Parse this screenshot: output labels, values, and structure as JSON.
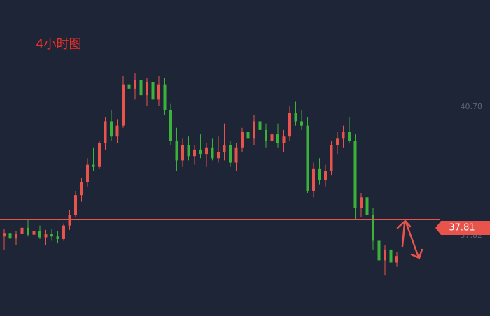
{
  "chart_data": {
    "type": "candlestick",
    "title": "4小时图",
    "price_tag": "37.81",
    "up_color": "#e8534b",
    "down_color": "#3bb33b",
    "ylim": [
      35.97,
      43.24
    ],
    "yticks": [
      37.82,
      40.78
    ],
    "ohlc": [
      [
        37.8,
        37.98,
        37.5,
        37.88
      ],
      [
        37.88,
        38.02,
        37.7,
        37.75
      ],
      [
        37.75,
        37.92,
        37.6,
        37.86
      ],
      [
        37.86,
        38.1,
        37.72,
        38.0
      ],
      [
        38.0,
        38.18,
        37.8,
        37.84
      ],
      [
        37.84,
        38.0,
        37.66,
        37.92
      ],
      [
        37.92,
        38.05,
        37.74,
        37.78
      ],
      [
        37.78,
        37.95,
        37.6,
        37.85
      ],
      [
        37.85,
        37.98,
        37.7,
        37.8
      ],
      [
        37.8,
        37.92,
        37.64,
        37.74
      ],
      [
        37.74,
        38.1,
        37.7,
        38.05
      ],
      [
        38.05,
        38.4,
        37.95,
        38.3
      ],
      [
        38.3,
        38.85,
        38.25,
        38.75
      ],
      [
        38.75,
        39.15,
        38.6,
        39.05
      ],
      [
        39.05,
        39.6,
        38.95,
        39.45
      ],
      [
        39.45,
        39.85,
        39.3,
        39.4
      ],
      [
        39.4,
        40.0,
        39.35,
        39.95
      ],
      [
        39.95,
        40.55,
        39.8,
        40.45
      ],
      [
        40.45,
        40.7,
        40.0,
        40.1
      ],
      [
        40.1,
        40.5,
        39.95,
        40.35
      ],
      [
        40.35,
        41.5,
        40.3,
        41.3
      ],
      [
        41.3,
        41.65,
        41.1,
        41.2
      ],
      [
        41.2,
        41.55,
        40.95,
        41.4
      ],
      [
        41.4,
        41.8,
        41.0,
        41.05
      ],
      [
        41.05,
        41.45,
        40.8,
        41.35
      ],
      [
        41.35,
        41.6,
        40.9,
        40.95
      ],
      [
        40.95,
        41.5,
        40.8,
        41.3
      ],
      [
        41.3,
        41.45,
        40.6,
        40.7
      ],
      [
        40.7,
        40.85,
        39.9,
        40.0
      ],
      [
        40.0,
        40.3,
        39.3,
        39.55
      ],
      [
        39.55,
        40.05,
        39.4,
        39.9
      ],
      [
        39.9,
        40.1,
        39.55,
        39.65
      ],
      [
        39.65,
        39.9,
        39.45,
        39.8
      ],
      [
        39.8,
        40.15,
        39.6,
        39.7
      ],
      [
        39.7,
        39.95,
        39.4,
        39.85
      ],
      [
        39.85,
        40.05,
        39.55,
        39.6
      ],
      [
        39.6,
        40.1,
        39.5,
        39.75
      ],
      [
        39.75,
        40.4,
        39.55,
        39.9
      ],
      [
        39.9,
        40.0,
        39.4,
        39.5
      ],
      [
        39.5,
        39.95,
        39.3,
        39.85
      ],
      [
        39.85,
        40.3,
        39.75,
        40.2
      ],
      [
        40.2,
        40.5,
        39.95,
        40.05
      ],
      [
        40.05,
        40.6,
        39.9,
        40.45
      ],
      [
        40.45,
        40.65,
        40.1,
        40.25
      ],
      [
        40.25,
        40.4,
        39.85,
        40.0
      ],
      [
        40.0,
        40.3,
        39.8,
        40.15
      ],
      [
        40.15,
        40.4,
        39.85,
        39.95
      ],
      [
        39.95,
        40.25,
        39.75,
        40.1
      ],
      [
        40.1,
        40.8,
        40.0,
        40.65
      ],
      [
        40.65,
        40.9,
        40.35,
        40.45
      ],
      [
        40.45,
        40.7,
        40.25,
        40.35
      ],
      [
        40.35,
        40.55,
        38.8,
        38.85
      ],
      [
        38.85,
        39.5,
        38.7,
        39.35
      ],
      [
        39.35,
        39.6,
        39.0,
        39.1
      ],
      [
        39.1,
        39.45,
        38.95,
        39.3
      ],
      [
        39.3,
        40.0,
        39.2,
        39.9
      ],
      [
        39.9,
        40.2,
        39.7,
        40.05
      ],
      [
        40.05,
        40.35,
        39.85,
        40.2
      ],
      [
        40.2,
        40.55,
        39.95,
        40.0
      ],
      [
        40.0,
        40.15,
        38.2,
        38.45
      ],
      [
        38.45,
        38.8,
        38.25,
        38.7
      ],
      [
        38.7,
        38.85,
        38.05,
        38.3
      ],
      [
        38.3,
        38.45,
        37.5,
        37.7
      ],
      [
        37.7,
        37.95,
        37.1,
        37.25
      ],
      [
        37.25,
        37.6,
        36.9,
        37.5
      ],
      [
        37.5,
        37.75,
        37.05,
        37.2
      ],
      [
        37.2,
        37.45,
        37.1,
        37.35
      ]
    ]
  }
}
